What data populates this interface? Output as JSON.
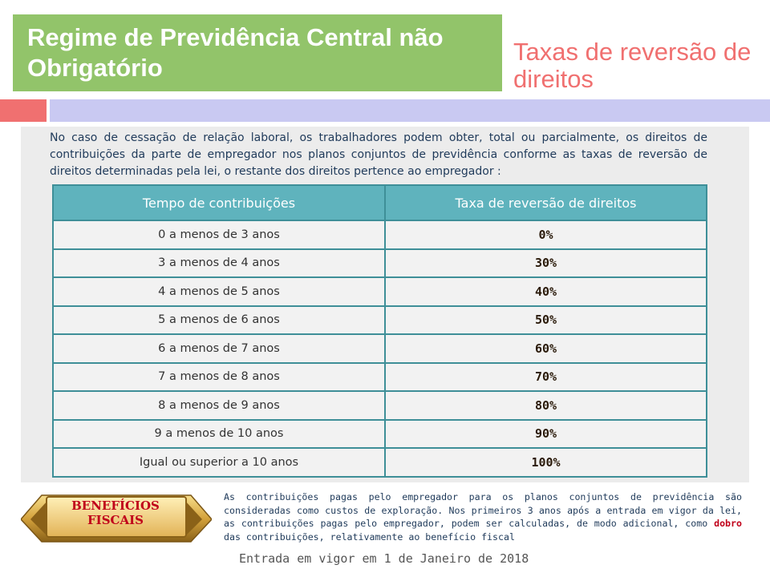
{
  "header": {
    "title": "Regime de Previdência Central não Obrigatório",
    "subtitle": "Taxas de reversão de direitos"
  },
  "intro": "No caso de cessação de relação laboral, os trabalhadores podem obter, total ou parcialmente, os direitos de contribuições da parte de empregador nos planos conjuntos de previdência conforme as taxas de reversão de direitos determinadas pela lei, o restante dos direitos pertence ao empregador :",
  "table": {
    "headers": [
      "Tempo de contribuições",
      "Taxa de reversão de direitos"
    ],
    "rows": [
      {
        "period": "0 a menos de 3 anos",
        "rate": "0%"
      },
      {
        "period": "3 a menos de 4 anos",
        "rate": "30%"
      },
      {
        "period": "4 a menos de 5 anos",
        "rate": "40%"
      },
      {
        "period": "5 a menos de 6 anos",
        "rate": "50%"
      },
      {
        "period": "6 a menos de 7 anos",
        "rate": "60%"
      },
      {
        "period": "7 a menos de 8 anos",
        "rate": "70%"
      },
      {
        "period": "8 a menos de 9 anos",
        "rate": "80%"
      },
      {
        "period": "9 a menos de 10 anos",
        "rate": "90%"
      },
      {
        "period": "Igual ou superior a 10 anos",
        "rate": "100%"
      }
    ]
  },
  "badge": {
    "line1": "BENEFÍCIOS",
    "line2": "FISCAIS"
  },
  "fiscal_note": {
    "before": "As contribuições pagas pelo empregador para os planos conjuntos de previdência são consideradas como custos de exploração. Nos primeiros 3 anos após a entrada em vigor da lei, as contribuições pagas pelo empregador, podem ser calculadas, de modo adicional, como ",
    "highlight": "dobro",
    "after": " das contribuições, relativamente ao benefício fiscal"
  },
  "footer": "Entrada em vigor em 1 de Janeiro de 2018",
  "colors": {
    "title_bg": "#92c46a",
    "subtitle": "#f07070",
    "table_header": "#5fb3bd",
    "highlight": "#c0001a"
  }
}
